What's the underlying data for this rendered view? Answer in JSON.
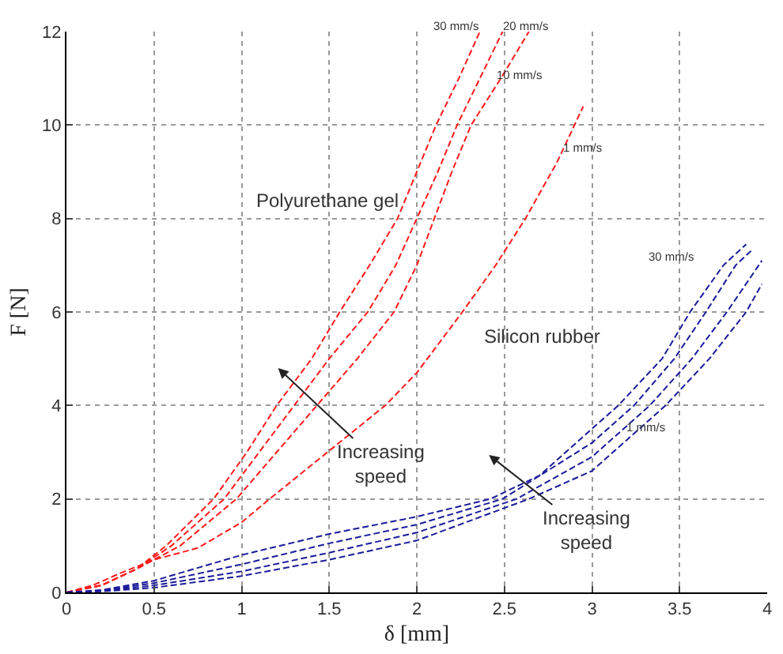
{
  "chart_data": {
    "type": "line",
    "xlabel": "δ [mm]",
    "ylabel": "F [N]",
    "xlim": [
      0,
      4
    ],
    "ylim": [
      0,
      12
    ],
    "xticks": [
      0,
      0.5,
      1,
      1.5,
      2,
      2.5,
      3,
      3.5,
      4
    ],
    "yticks": [
      0,
      2,
      4,
      6,
      8,
      10,
      12
    ],
    "grid": true,
    "marker": "none",
    "line_style": "dashed",
    "series": [
      {
        "color": "#ff1a1a",
        "x": [
          0,
          0.2,
          0.4,
          0.57,
          0.84,
          1.03,
          1.2,
          1.4,
          1.56,
          1.73,
          1.89,
          2.0,
          2.11,
          2.24,
          2.36
        ],
        "values": [
          0,
          0.15,
          0.5,
          1,
          2,
          3,
          4,
          5,
          6,
          7,
          8,
          9,
          10,
          11,
          12
        ]
      },
      {
        "color": "#ff1a1a",
        "x": [
          0,
          0.2,
          0.4,
          0.6,
          0.9,
          1.1,
          1.3,
          1.5,
          1.72,
          1.88,
          2.0,
          2.12,
          2.23,
          2.36,
          2.49
        ],
        "values": [
          0,
          0.15,
          0.5,
          1,
          2,
          3,
          4,
          5,
          6,
          7,
          8,
          9,
          10,
          11,
          12
        ]
      },
      {
        "color": "#ff1a1a",
        "x": [
          0,
          0.2,
          0.4,
          0.65,
          0.97,
          1.2,
          1.43,
          1.66,
          1.87,
          2.0,
          2.1,
          2.2,
          2.31,
          2.48,
          2.64
        ],
        "values": [
          0,
          0.15,
          0.5,
          1,
          2,
          3,
          4,
          5,
          6,
          7,
          8,
          9,
          10,
          11,
          12
        ]
      },
      {
        "color": "#ff1a1a",
        "x": [
          0,
          0.15,
          0.3,
          0.5,
          0.75,
          1.0,
          1.16,
          1.49,
          1.82,
          2.0,
          2.26,
          2.45,
          2.62,
          2.8,
          2.95
        ],
        "values": [
          0,
          0.15,
          0.4,
          0.7,
          0.95,
          1.5,
          2,
          3,
          4,
          4.7,
          6,
          7,
          8,
          9.2,
          10.4
        ]
      },
      {
        "color": "#1a1a9a",
        "x": [
          0,
          0.2,
          0.5,
          1,
          1.5,
          2,
          2.42,
          2.7,
          3,
          3.15,
          3.4,
          3.56,
          3.75,
          3.88
        ],
        "values": [
          0,
          0.05,
          0.25,
          0.8,
          1.25,
          1.62,
          2,
          2.5,
          3.5,
          4,
          5,
          6,
          7,
          7.45
        ]
      },
      {
        "color": "#1a1a9a",
        "x": [
          0,
          0.2,
          0.5,
          1,
          1.5,
          2,
          2.49,
          3,
          3.24,
          3.47,
          3.65,
          3.82,
          3.92
        ],
        "values": [
          0,
          0.04,
          0.2,
          0.6,
          1.05,
          1.45,
          2,
          3.2,
          4,
          5,
          6,
          7,
          7.35
        ]
      },
      {
        "color": "#1a1a9a",
        "x": [
          0,
          0.2,
          0.5,
          1,
          1.5,
          2,
          2.57,
          3,
          3.33,
          3.57,
          3.77,
          3.97
        ],
        "values": [
          0,
          0.03,
          0.15,
          0.45,
          0.85,
          1.28,
          2,
          2.9,
          4,
          5,
          6,
          7.1
        ]
      },
      {
        "color": "#1a1a9a",
        "x": [
          0,
          0.2,
          0.5,
          1,
          1.5,
          2,
          2.64,
          3,
          3.42,
          3.67,
          3.88,
          3.97
        ],
        "values": [
          0,
          0.02,
          0.1,
          0.35,
          0.7,
          1.11,
          2,
          2.6,
          4,
          5,
          6,
          6.6
        ]
      }
    ],
    "annotations": [
      "Polyurethane gel",
      "Silicon rubber",
      "Increasing\nspeed",
      "Increasing\nspeed",
      "30 mm/s",
      "20 mm/s",
      "10 mm/s",
      "1 mm/s",
      "30 mm/s",
      "1 mm/s"
    ]
  }
}
